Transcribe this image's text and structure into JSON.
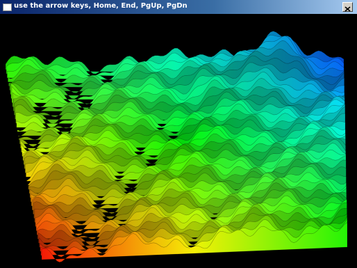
{
  "window": {
    "title": "use the arrow keys, Home, End, PgUp, PgDn"
  }
}
